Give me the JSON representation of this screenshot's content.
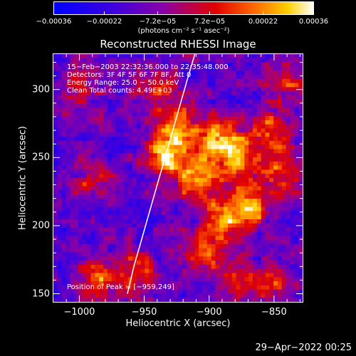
{
  "chart_data": {
    "type": "heatmap",
    "title": "Reconstructed RHESSI Image",
    "xlabel": "Heliocentric X (arcsec)",
    "ylabel": "Heliocentric Y (arcsec)",
    "xlim": [
      -1020,
      -828
    ],
    "ylim": [
      144,
      326
    ],
    "x_ticks": [
      -1000,
      -950,
      -900,
      -850
    ],
    "x_tick_labels": [
      "−1000",
      "−950",
      "−900",
      "−850"
    ],
    "y_ticks": [
      150,
      200,
      250,
      300
    ],
    "y_tick_labels": [
      "150",
      "200",
      "250",
      "300"
    ],
    "colorbar": {
      "range": [
        -0.00036,
        0.00036
      ],
      "ticks": [
        -0.00036,
        -0.00022,
        -7.2e-05,
        7.2e-05,
        0.00022,
        0.00036
      ],
      "tick_labels": [
        "−0.00036",
        "−0.00022",
        "−7.2e−05",
        "7.2e−05",
        "0.00022",
        "0.00036"
      ],
      "unit_label": "(photons cm⁻² s⁻¹ asec⁻²)"
    },
    "annotations": [
      "15−Feb−2003 22:32:36.000 to 22:35:48.000",
      "Detectors: 3F 4F 5F 6F 7F 8F, Att 0",
      "Energy Range: 25.0 − 50.0 keV",
      "Clean    Total counts: 4.49E+03"
    ],
    "peak_label": "Position of Peak = [−959,249]",
    "peak_position": [
      -959,
      249
    ],
    "limb_curve": {
      "x": [
        -963,
        -958,
        -952,
        -946,
        -940,
        -934,
        -928,
        -922,
        -916,
        -911
      ],
      "y": [
        150,
        170,
        190,
        210,
        230,
        250,
        270,
        290,
        310,
        326
      ]
    },
    "bright_sources": [
      {
        "x": -985,
        "y": 160,
        "strength": 0.75
      },
      {
        "x": -955,
        "y": 165,
        "strength": 0.6
      },
      {
        "x": -935,
        "y": 250,
        "strength": 1.0
      },
      {
        "x": -925,
        "y": 270,
        "strength": 0.95
      },
      {
        "x": -910,
        "y": 235,
        "strength": 0.95
      },
      {
        "x": -895,
        "y": 265,
        "strength": 0.9
      },
      {
        "x": -880,
        "y": 250,
        "strength": 0.9
      },
      {
        "x": -870,
        "y": 215,
        "strength": 0.9
      },
      {
        "x": -890,
        "y": 205,
        "strength": 0.8
      },
      {
        "x": -855,
        "y": 270,
        "strength": 0.8
      },
      {
        "x": -845,
        "y": 240,
        "strength": 0.75
      },
      {
        "x": -905,
        "y": 180,
        "strength": 0.7
      },
      {
        "x": -880,
        "y": 160,
        "strength": 0.65
      },
      {
        "x": -990,
        "y": 235,
        "strength": 0.45
      },
      {
        "x": -1000,
        "y": 300,
        "strength": 0.55
      },
      {
        "x": -940,
        "y": 300,
        "strength": 0.55
      },
      {
        "x": -840,
        "y": 305,
        "strength": 0.55
      },
      {
        "x": -850,
        "y": 155,
        "strength": 0.45
      }
    ]
  },
  "footer_timestamp": "29−Apr−2022 00:25"
}
